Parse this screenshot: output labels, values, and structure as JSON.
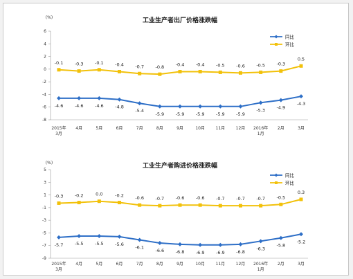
{
  "colors": {
    "mom": "#2e6fc7",
    "yoy": "#f2c10a"
  },
  "chart_data": [
    {
      "type": "line",
      "title": "工业生产者出厂价格涨跌幅",
      "unit": "(%)",
      "categories": [
        "2015年\n3月",
        "4月",
        "5月",
        "6月",
        "7月",
        "8月",
        "9月",
        "10月",
        "11月",
        "12月",
        "2016年\n1月",
        "2月",
        "3月"
      ],
      "ylim": [
        -8,
        6
      ],
      "yticks": [
        6,
        4,
        2,
        0,
        -2,
        -4,
        -6,
        -8
      ],
      "legend": "top-right",
      "series": [
        {
          "name": "同比",
          "key": "mom",
          "values": [
            -4.6,
            -4.6,
            -4.6,
            -4.8,
            -5.4,
            -5.9,
            -5.9,
            -5.9,
            -5.9,
            -5.9,
            -5.3,
            -4.9,
            -4.3
          ]
        },
        {
          "name": "环比",
          "key": "yoy",
          "values": [
            -0.1,
            -0.3,
            -0.1,
            -0.4,
            -0.7,
            -0.8,
            -0.4,
            -0.4,
            -0.5,
            -0.6,
            -0.5,
            -0.3,
            0.5
          ]
        }
      ]
    },
    {
      "type": "line",
      "title": "工业生产者购进价格涨跌幅",
      "unit": "(%)",
      "categories": [
        "2015年\n3月",
        "4月",
        "5月",
        "6月",
        "7月",
        "8月",
        "9月",
        "10月",
        "11月",
        "12月",
        "2016年\n1月",
        "2月",
        "3月"
      ],
      "ylim": [
        -9,
        5
      ],
      "yticks": [
        5,
        3,
        1,
        -1,
        -3,
        -5,
        -7,
        -9
      ],
      "legend": "top-right",
      "series": [
        {
          "name": "同比",
          "key": "mom",
          "values": [
            -5.7,
            -5.5,
            -5.5,
            -5.6,
            -6.1,
            -6.6,
            -6.8,
            -6.9,
            -6.9,
            -6.8,
            -6.3,
            -5.8,
            -5.2
          ]
        },
        {
          "name": "环比",
          "key": "yoy",
          "values": [
            -0.3,
            -0.2,
            0.0,
            -0.2,
            -0.6,
            -0.7,
            -0.6,
            -0.6,
            -0.7,
            -0.7,
            -0.7,
            -0.5,
            0.3
          ]
        }
      ]
    }
  ]
}
